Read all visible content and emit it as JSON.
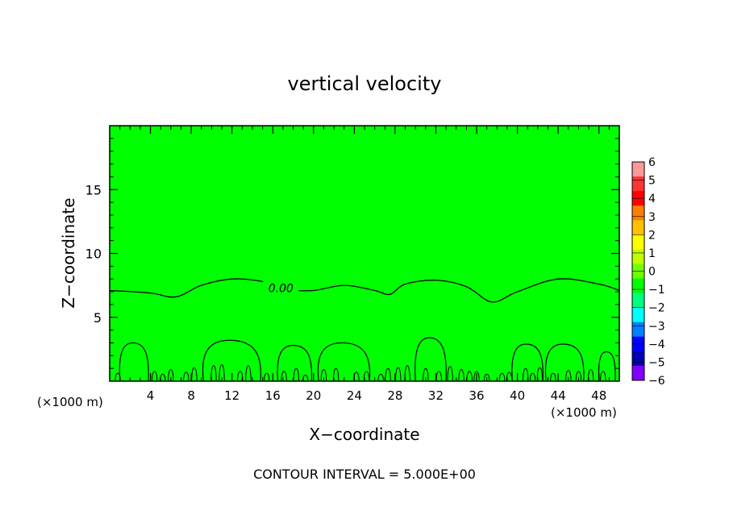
{
  "chart_data": {
    "type": "contour",
    "title": "vertical velocity",
    "xlabel": "X−coordinate",
    "ylabel": "Z−coordinate",
    "x_unit_left": "(×1000 m)",
    "x_unit_right": "(×1000 m)",
    "xlim": [
      0,
      50
    ],
    "ylim": [
      0,
      20
    ],
    "x_ticks": [
      4,
      8,
      12,
      16,
      20,
      24,
      28,
      32,
      36,
      40,
      44,
      48
    ],
    "y_ticks": [
      5,
      10,
      15
    ],
    "contour_label": "0.00",
    "footer": "CONTOUR INTERVAL = 5.000E+00",
    "fill_color": "#00ff00",
    "colorbar": {
      "levels": [
        6,
        5,
        4,
        3,
        2,
        1,
        0,
        -1,
        -2,
        -3,
        -4,
        -5,
        -6
      ],
      "labels": [
        "6",
        "5",
        "4",
        "3",
        "2",
        "1",
        "0",
        "−1",
        "−2",
        "−3",
        "−4",
        "−5",
        "−6"
      ],
      "colors": [
        "#ff9999",
        "#ff3333",
        "#ff0000",
        "#ff8000",
        "#ffc000",
        "#ffff00",
        "#c0ff00",
        "#70ff00",
        "#00ff00",
        "#00ff80",
        "#00ffff",
        "#0080ff",
        "#0000ff",
        "#0000b0",
        "#8000ff"
      ]
    },
    "zero_contour": {
      "x": [
        0,
        4,
        6.5,
        9,
        12,
        15,
        17.3,
        20,
        23,
        26,
        27.5,
        29,
        32,
        35,
        37.5,
        40,
        44,
        48,
        50
      ],
      "z": [
        7.1,
        6.9,
        6.6,
        7.5,
        8.0,
        7.8,
        7.2,
        7.1,
        7.5,
        7.1,
        6.8,
        7.6,
        7.9,
        7.4,
        6.2,
        7.0,
        8.0,
        7.6,
        7.1
      ]
    },
    "cells": [
      {
        "x0": 1.0,
        "x1": 3.8,
        "top": 3.0
      },
      {
        "x0": 9.2,
        "x1": 14.8,
        "top": 3.2
      },
      {
        "x0": 16.5,
        "x1": 19.8,
        "top": 2.8
      },
      {
        "x0": 20.5,
        "x1": 25.5,
        "top": 3.0
      },
      {
        "x0": 30.0,
        "x1": 33.0,
        "top": 3.4
      },
      {
        "x0": 39.5,
        "x1": 42.5,
        "top": 2.9
      },
      {
        "x0": 42.8,
        "x1": 46.5,
        "top": 2.9
      },
      {
        "x0": 48.0,
        "x1": 49.6,
        "top": 2.3
      }
    ]
  }
}
